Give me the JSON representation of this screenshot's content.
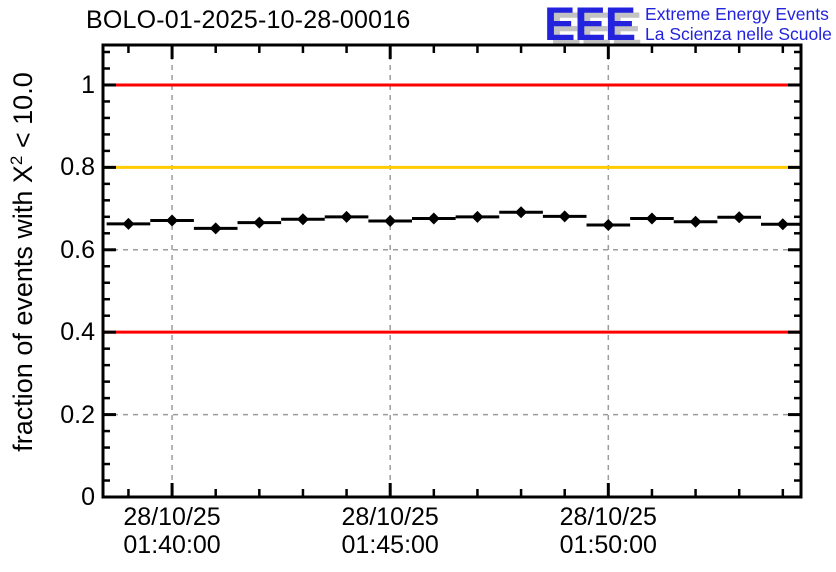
{
  "logo": {
    "acronym": "EEE",
    "line1": "Extreme Energy Events",
    "line2": "La Scienza nelle Scuole",
    "color": "#2323dd",
    "shadow_color": "#c3c3c3"
  },
  "chart_data": {
    "type": "scatter",
    "title": "BOLO-01-2025-10-28-00016",
    "ylabel": "fraction of events with X^2 < 10.0",
    "ylabel_parts": {
      "prefix": "fraction of events with X",
      "sup": "2",
      "suffix": " < 10.0"
    },
    "xlabel": "",
    "ylim": [
      0,
      1.097
    ],
    "y_minor_step": 0.04,
    "y_tick_labels": [
      {
        "label": "0",
        "value": 0
      },
      {
        "label": "0.2",
        "value": 0.2
      },
      {
        "label": "0.4",
        "value": 0.4
      },
      {
        "label": "0.6",
        "value": 0.6
      },
      {
        "label": "0.8",
        "value": 0.8
      },
      {
        "label": "1",
        "value": 1.0
      }
    ],
    "grid": true,
    "grid_color": "#9c9c9c",
    "x_range": [
      "01:38:25",
      "01:54:25"
    ],
    "x_minor_step_minutes": 1,
    "x_major_ticks": [
      {
        "date": "28/10/25",
        "time": "01:40:00"
      },
      {
        "date": "28/10/25",
        "time": "01:45:00"
      },
      {
        "date": "28/10/25",
        "time": "01:50:00"
      }
    ],
    "reference_lines": [
      {
        "value": 1.0,
        "color": "#ff0000"
      },
      {
        "value": 0.8,
        "color": "#ffcc00"
      },
      {
        "value": 0.4,
        "color": "#ff0000"
      }
    ],
    "series": [
      {
        "marker": "diamond",
        "color": "#000000",
        "bin_halfwidth_minutes": 0.5,
        "y_error": 0.006,
        "points": [
          {
            "time": "01:39:00",
            "value": 0.663
          },
          {
            "time": "01:40:00",
            "value": 0.671
          },
          {
            "time": "01:41:00",
            "value": 0.652
          },
          {
            "time": "01:42:00",
            "value": 0.666
          },
          {
            "time": "01:43:00",
            "value": 0.674
          },
          {
            "time": "01:44:00",
            "value": 0.68
          },
          {
            "time": "01:45:00",
            "value": 0.67
          },
          {
            "time": "01:46:00",
            "value": 0.676
          },
          {
            "time": "01:47:00",
            "value": 0.68
          },
          {
            "time": "01:48:00",
            "value": 0.691
          },
          {
            "time": "01:49:00",
            "value": 0.681
          },
          {
            "time": "01:50:00",
            "value": 0.66
          },
          {
            "time": "01:51:00",
            "value": 0.676
          },
          {
            "time": "01:52:00",
            "value": 0.668
          },
          {
            "time": "01:53:00",
            "value": 0.679
          },
          {
            "time": "01:54:00",
            "value": 0.662
          }
        ]
      }
    ]
  }
}
